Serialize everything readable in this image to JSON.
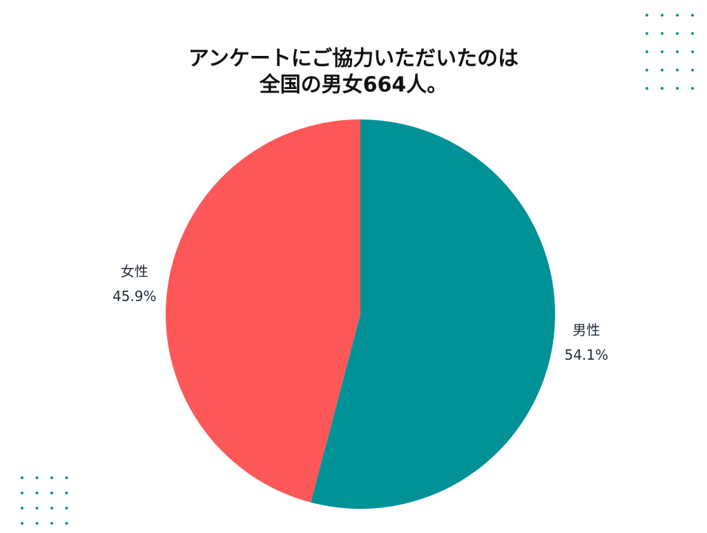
{
  "chart_data": {
    "type": "pie",
    "title": [
      "アンケートにご協力いただいたのは",
      "全国の男女664人。"
    ],
    "categories": [
      "男性",
      "女性"
    ],
    "values": [
      54.1,
      45.9
    ],
    "value_labels": [
      "54.1%",
      "45.9%"
    ],
    "colors": [
      "#009297",
      "#fe5757"
    ]
  }
}
